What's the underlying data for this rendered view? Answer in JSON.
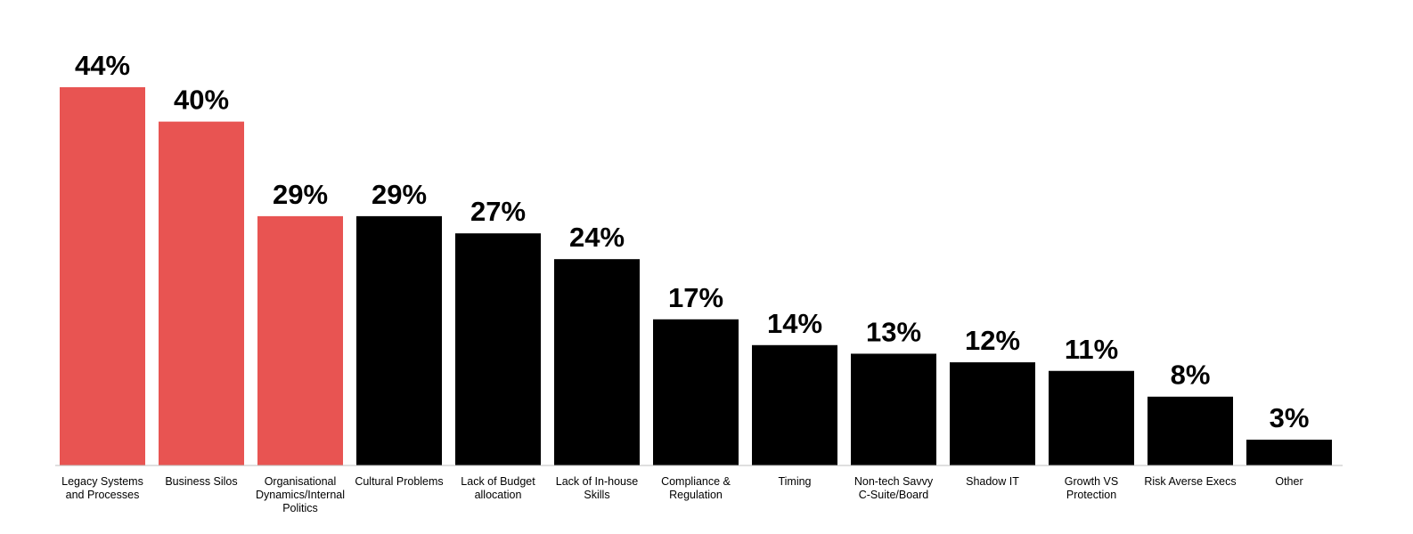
{
  "chart_data": {
    "type": "bar",
    "title": "",
    "xlabel": "",
    "ylabel": "",
    "ylim": [
      0,
      44
    ],
    "grid": false,
    "legend": "none",
    "categories": [
      "Legacy Systems and Processes",
      "Business Silos",
      "Organisational Dynamics/Internal Politics",
      "Cultural Problems",
      "Lack of Budget allocation",
      "Lack of In-house Skills",
      "Compliance & Regulation",
      "Timing",
      "Non-tech Savvy C-Suite/Board",
      "Shadow IT",
      "Growth VS Protection",
      "Risk Averse Execs",
      "Other"
    ],
    "category_label_lines": [
      [
        "Legacy Systems",
        "and Processes"
      ],
      [
        "Business Silos"
      ],
      [
        "Organisational",
        "Dynamics/Internal",
        "Politics"
      ],
      [
        "Cultural Problems"
      ],
      [
        "Lack of Budget",
        "allocation"
      ],
      [
        "Lack of In-house",
        "Skills"
      ],
      [
        "Compliance &",
        "Regulation"
      ],
      [
        "Timing"
      ],
      [
        "Non-tech Savvy",
        "C-Suite/Board"
      ],
      [
        "Shadow IT"
      ],
      [
        "Growth VS",
        "Protection"
      ],
      [
        "Risk Averse Execs"
      ],
      [
        "Other"
      ]
    ],
    "values": [
      44,
      40,
      29,
      29,
      27,
      24,
      17,
      14,
      13,
      12,
      11,
      8,
      3
    ],
    "value_labels": [
      "44%",
      "40%",
      "29%",
      "29%",
      "27%",
      "24%",
      "17%",
      "14%",
      "13%",
      "12%",
      "11%",
      "8%",
      "3%"
    ],
    "bar_colors": [
      "#e85452",
      "#e85452",
      "#e85452",
      "#000000",
      "#000000",
      "#000000",
      "#000000",
      "#000000",
      "#000000",
      "#000000",
      "#000000",
      "#000000",
      "#000000"
    ],
    "colors": {
      "highlight": "#e85452",
      "default": "#000000",
      "axis": "#bfbfbf",
      "background": "#ffffff"
    }
  }
}
